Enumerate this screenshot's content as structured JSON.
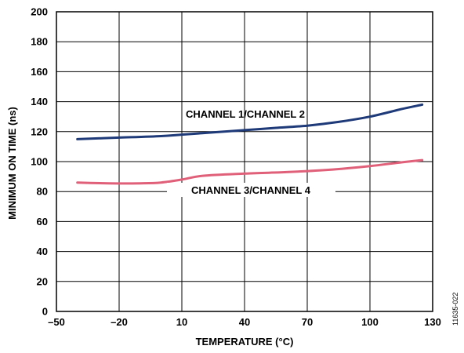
{
  "figure_id": "11635-022",
  "chart_data": {
    "type": "line",
    "title": "",
    "xlabel": "TEMPERATURE (°C)",
    "ylabel": "MINIMUM ON TIME (ns)",
    "xlim": [
      -50,
      130
    ],
    "ylim": [
      0,
      200
    ],
    "x_ticks": [
      -50,
      -20,
      10,
      40,
      70,
      100,
      130
    ],
    "x_tick_labels": [
      "–50",
      "–20",
      "10",
      "40",
      "70",
      "100",
      "130"
    ],
    "y_ticks": [
      0,
      20,
      40,
      60,
      80,
      100,
      120,
      140,
      160,
      180,
      200
    ],
    "y_tick_labels": [
      "0",
      "20",
      "40",
      "60",
      "80",
      "100",
      "120",
      "140",
      "160",
      "180",
      "200"
    ],
    "grid": true,
    "series": [
      {
        "name": "CHANNEL 1/CHANNEL 2",
        "color": "#1f3a78",
        "x": [
          -40,
          -20,
          0,
          10,
          25,
          40,
          55,
          70,
          85,
          100,
          115,
          125
        ],
        "y": [
          115,
          116,
          117,
          118,
          119.5,
          121,
          122.5,
          124,
          126.5,
          130,
          135,
          138
        ]
      },
      {
        "name": "CHANNEL 3/CHANNEL 4",
        "color": "#e0607a",
        "x": [
          -40,
          -25,
          -10,
          0,
          10,
          20,
          40,
          60,
          80,
          100,
          115,
          125
        ],
        "y": [
          86,
          85.5,
          85.5,
          86,
          88,
          90.5,
          92,
          93,
          94.5,
          97,
          99.5,
          101
        ]
      }
    ]
  }
}
